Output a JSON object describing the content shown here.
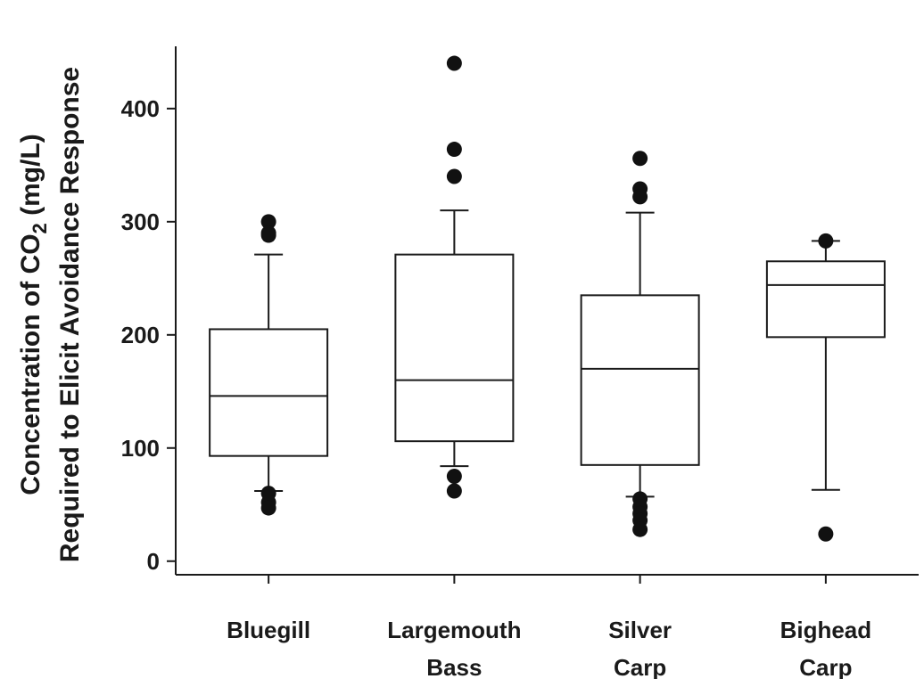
{
  "chart_data": {
    "type": "box",
    "ylabel": {
      "line1_prefix": "Concentration of CO",
      "line1_subscript": "2",
      "line1_suffix": " (mg/L)",
      "line2": "Required to Elicit Avoidance Response"
    },
    "ylim": [
      -12,
      455
    ],
    "yticks": [
      0,
      100,
      200,
      300,
      400
    ],
    "grid": false,
    "categories": [
      [
        "Bluegill"
      ],
      [
        "Largemouth",
        "Bass"
      ],
      [
        "Silver",
        "Carp"
      ],
      [
        "Bighead",
        "Carp"
      ]
    ],
    "boxes": [
      {
        "whisker_low": 62,
        "q1": 93,
        "median": 146,
        "q3": 205,
        "whisker_high": 271,
        "outliers": [
          300,
          290,
          288,
          60,
          52,
          47
        ]
      },
      {
        "whisker_low": 84,
        "q1": 106,
        "median": 160,
        "q3": 271,
        "whisker_high": 310,
        "outliers": [
          440,
          364,
          340,
          75,
          62
        ]
      },
      {
        "whisker_low": 57,
        "q1": 85,
        "median": 170,
        "q3": 235,
        "whisker_high": 308,
        "outliers": [
          356,
          329,
          322,
          55,
          48,
          42,
          36,
          28
        ]
      },
      {
        "whisker_low": 63,
        "q1": 198,
        "median": 244,
        "q3": 265,
        "whisker_high": 283,
        "outliers": [
          283,
          24
        ]
      }
    ],
    "colors": {
      "line": "#1a1a1a",
      "box_fill": "#ffffff",
      "point": "#111111"
    }
  }
}
